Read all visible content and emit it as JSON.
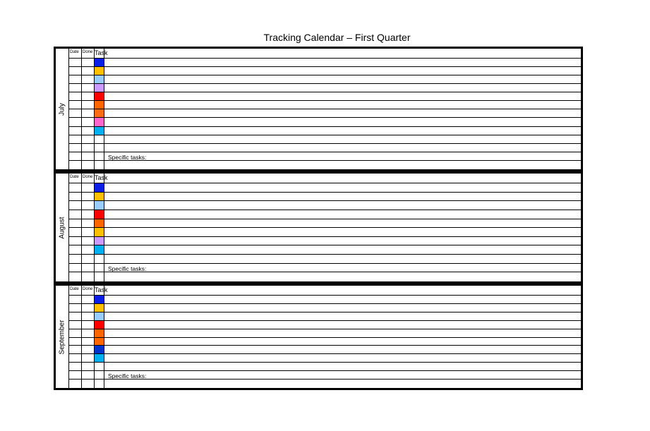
{
  "title": "Tracking Calendar – First Quarter",
  "headers": {
    "date": "Date",
    "done": "Done",
    "task": "Task"
  },
  "specific_label": "Specific tasks:",
  "sections": [
    {
      "month": "July",
      "rows": 13,
      "specific_row": 11,
      "colors": [
        "#0a1ee6",
        "#ffc000",
        "#99ccff",
        "#cc99ff",
        "#ff0000",
        "#ff6600",
        "#ff6a14",
        "#ff66cc",
        "#00b0f0"
      ]
    },
    {
      "month": "August",
      "rows": 11,
      "specific_row": 9,
      "colors": [
        "#0a1ee6",
        "#ffc000",
        "#99ccff",
        "#ff0000",
        "#ff6600",
        "#ffc000",
        "#cc99ff",
        "#00b0f0"
      ]
    },
    {
      "month": "September",
      "rows": 11,
      "specific_row": 9,
      "colors": [
        "#0a1ee6",
        "#ffc000",
        "#99ccff",
        "#ff0000",
        "#ff6600",
        "#ff6600",
        "#0033cc",
        "#00b0f0"
      ]
    }
  ]
}
